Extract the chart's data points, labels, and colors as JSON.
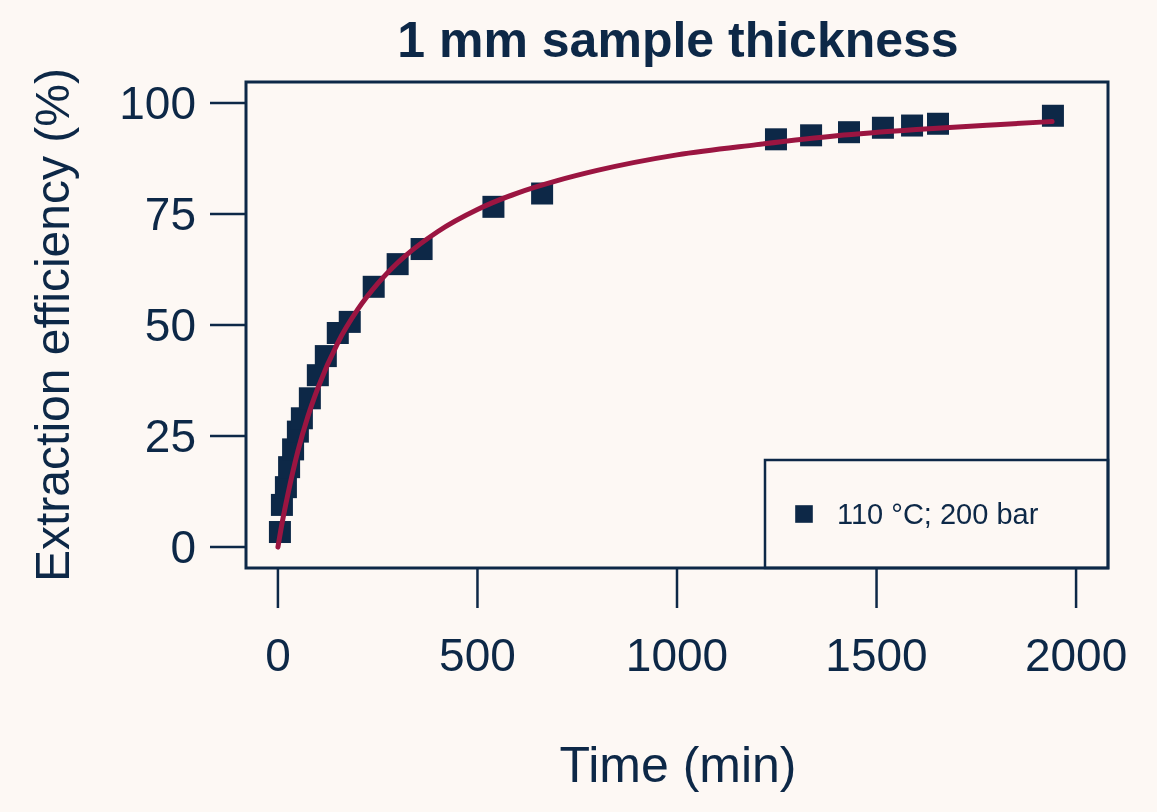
{
  "chart_data": {
    "type": "scatter",
    "title": "1 mm sample thickness",
    "xlabel": "Time (min)",
    "ylabel": "Extraction efficiency (%)",
    "xlim": [
      -80,
      2080
    ],
    "ylim": [
      -4.7,
      104.7
    ],
    "xticks": [
      0,
      500,
      1000,
      1500,
      2000
    ],
    "yticks": [
      0,
      25,
      50,
      75,
      100
    ],
    "grid": false,
    "legend": "bottom right",
    "marker": "square",
    "series": [
      {
        "name": "110 °C; 200 bar",
        "color": "#0d2847",
        "x": [
          5,
          10,
          20,
          28,
          38,
          50,
          60,
          80,
          100,
          120,
          150,
          180,
          240,
          300,
          360,
          540,
          662,
          1248,
          1336,
          1431,
          1516,
          1589,
          1654,
          1942
        ],
        "values": [
          3.4,
          9.5,
          13.5,
          18,
          22,
          26,
          29,
          33.5,
          38.7,
          43,
          48.2,
          50.7,
          58.6,
          63.7,
          67.1,
          76.6,
          79.6,
          91.8,
          92.7,
          93.4,
          94.4,
          94.9,
          95.3,
          97.1
        ]
      },
      {
        "color": "#9b1541",
        "type": "line",
        "marker": "none",
        "line_style": "solid",
        "x": [
          0,
          10,
          25,
          50,
          75,
          100,
          150,
          200,
          250,
          300,
          400,
          500,
          600,
          700,
          800,
          1000,
          1200,
          1400,
          1600,
          1800,
          1940
        ],
        "values": [
          0,
          5.2,
          11.9,
          21.6,
          29.4,
          35.8,
          46,
          53.5,
          59.3,
          64,
          71,
          76,
          79.7,
          82.5,
          84.8,
          88.3,
          90.6,
          92.6,
          94,
          95.1,
          95.8
        ]
      }
    ]
  }
}
